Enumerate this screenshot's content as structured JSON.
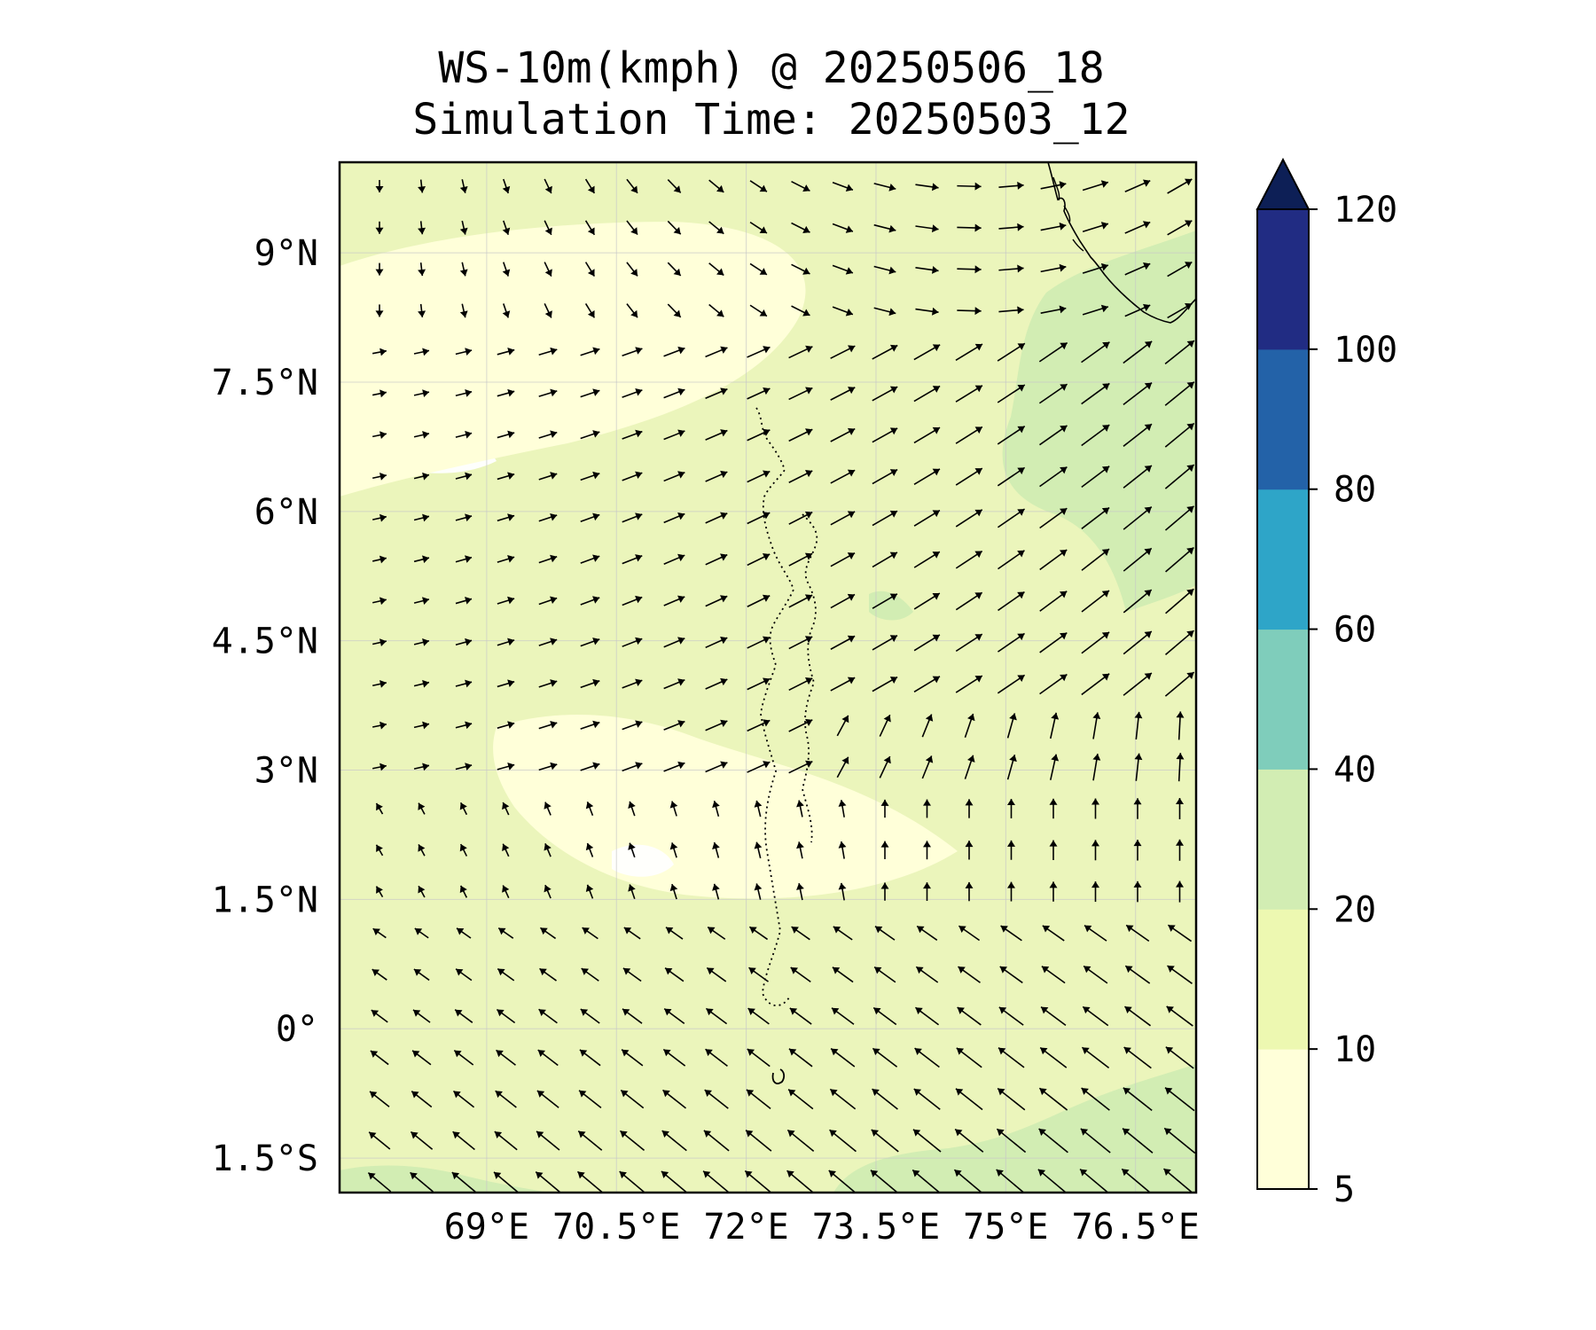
{
  "title": {
    "line1": "WS-10m(kmph) @ 20250506_18",
    "line2": "Simulation Time: 20250503_12"
  },
  "map": {
    "extent": {
      "lon_min": 67.3,
      "lon_max": 77.2,
      "lat_min": -1.9,
      "lat_max": 10.05
    },
    "lat_ticks": [
      {
        "value": 9,
        "label": "9°N"
      },
      {
        "value": 7.5,
        "label": "7.5°N"
      },
      {
        "value": 6,
        "label": "6°N"
      },
      {
        "value": 4.5,
        "label": "4.5°N"
      },
      {
        "value": 3,
        "label": "3°N"
      },
      {
        "value": 1.5,
        "label": "1.5°N"
      },
      {
        "value": 0,
        "label": "0°"
      },
      {
        "value": -1.5,
        "label": "1.5°S"
      }
    ],
    "lon_ticks": [
      {
        "value": 69,
        "label": "69°E"
      },
      {
        "value": 70.5,
        "label": "70.5°E"
      },
      {
        "value": 72,
        "label": "72°E"
      },
      {
        "value": 73.5,
        "label": "73.5°E"
      },
      {
        "value": 75,
        "label": "75°E"
      },
      {
        "value": 76.5,
        "label": "76.5°E"
      }
    ],
    "gridlines": true,
    "vector_field": "10 m wind direction arrows"
  },
  "colorbar": {
    "levels": [
      5,
      10,
      20,
      40,
      60,
      80,
      100,
      120
    ],
    "labels": [
      "5",
      "10",
      "20",
      "40",
      "60",
      "80",
      "100",
      "120"
    ],
    "colors": [
      "#ffffd9",
      "#edf8b1",
      "#d2edb3",
      "#7fcdbb",
      "#2ea5c8",
      "#2362a8",
      "#212c83",
      "#0d1f56"
    ],
    "extend": "max",
    "orientation": "vertical",
    "placement": "right"
  }
}
